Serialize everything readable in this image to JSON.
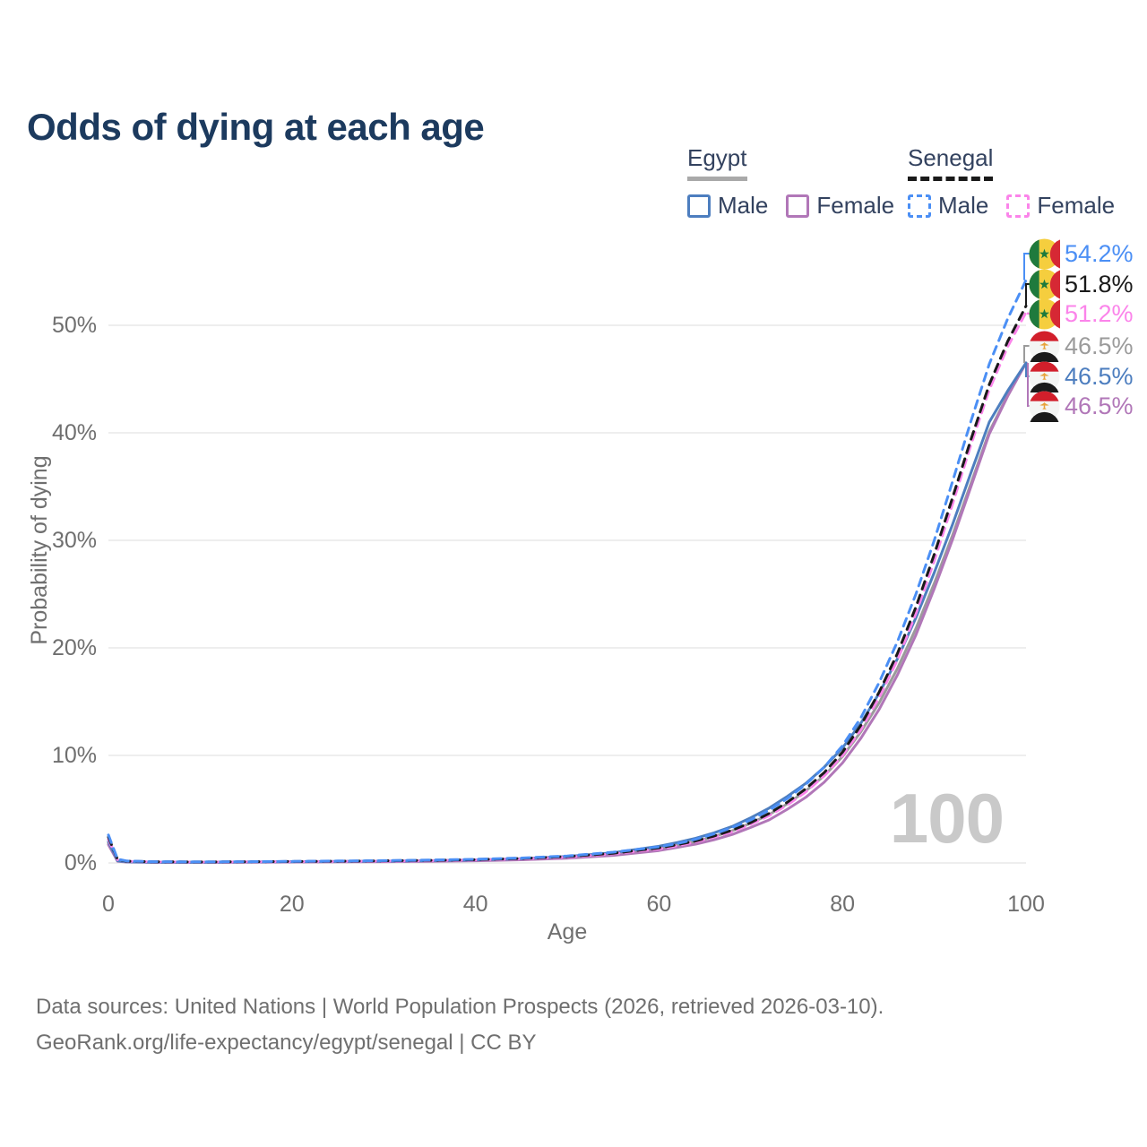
{
  "title": "Odds of dying at each age",
  "watermark": "100",
  "legend": {
    "groups": [
      {
        "name": "Egypt",
        "line_style": "solid",
        "underline_color": "#a9a9a9",
        "items": [
          {
            "label": "Male",
            "color": "#4d7ebf",
            "dashed": false
          },
          {
            "label": "Female",
            "color": "#b177b8",
            "dashed": false
          }
        ]
      },
      {
        "name": "Senegal",
        "line_style": "dashed",
        "underline_color": "#1a1a1a",
        "items": [
          {
            "label": "Male",
            "color": "#4b8ff5",
            "dashed": true
          },
          {
            "label": "Female",
            "color": "#fb84ea",
            "dashed": true
          }
        ]
      }
    ]
  },
  "end_labels": [
    {
      "series": "Senegal Male",
      "flag": "senegal",
      "value": "54.2%",
      "color": "#4b8ff5"
    },
    {
      "series": "Senegal",
      "flag": "senegal",
      "value": "51.8%",
      "color": "#1a1a1a"
    },
    {
      "series": "Senegal Female",
      "flag": "senegal",
      "value": "51.2%",
      "color": "#fb84ea"
    },
    {
      "series": "Egypt",
      "flag": "egypt",
      "value": "46.5%",
      "color": "#9b9b9b"
    },
    {
      "series": "Egypt Male",
      "flag": "egypt",
      "value": "46.5%",
      "color": "#4d7ebf"
    },
    {
      "series": "Egypt Female",
      "flag": "egypt",
      "value": "46.5%",
      "color": "#b177b8"
    }
  ],
  "chart_data": {
    "type": "line",
    "title": "Odds of dying at each age",
    "xlabel": "Age",
    "ylabel": "Probability of dying",
    "xlim": [
      0,
      100
    ],
    "ylim": [
      0,
      56
    ],
    "grid": "horizontal",
    "legend_position": "top-right",
    "x_ticks": [
      0,
      20,
      40,
      60,
      80,
      100
    ],
    "x_tick_labels": [
      "0",
      "20",
      "40",
      "60",
      "80",
      "100"
    ],
    "y_ticks": [
      0,
      10,
      20,
      30,
      40,
      50
    ],
    "y_tick_labels": [
      "0%",
      "10%",
      "20%",
      "30%",
      "40%",
      "50%"
    ],
    "x": [
      0,
      1,
      2,
      5,
      10,
      15,
      20,
      25,
      30,
      35,
      40,
      45,
      50,
      55,
      60,
      62,
      64,
      66,
      68,
      70,
      72,
      74,
      76,
      78,
      80,
      82,
      84,
      86,
      88,
      90,
      92,
      94,
      96,
      98,
      100
    ],
    "series": [
      {
        "name": "Egypt",
        "country": "Egypt",
        "sex": "total",
        "color": "#9b9b9b",
        "dashed": false,
        "end_value_pct": 46.5,
        "values": [
          1.85,
          0.18,
          0.09,
          0.06,
          0.06,
          0.08,
          0.1,
          0.12,
          0.15,
          0.18,
          0.24,
          0.34,
          0.52,
          0.82,
          1.35,
          1.65,
          2.0,
          2.45,
          3.0,
          3.7,
          4.5,
          5.5,
          6.7,
          8.1,
          9.9,
          12.2,
          14.9,
          18.1,
          21.8,
          26.0,
          30.5,
          35.3,
          40.1,
          43.5,
          46.5
        ]
      },
      {
        "name": "Egypt Female",
        "country": "Egypt",
        "sex": "female",
        "color": "#b177b8",
        "dashed": false,
        "end_value_pct": 46.5,
        "values": [
          1.7,
          0.16,
          0.08,
          0.05,
          0.05,
          0.06,
          0.08,
          0.1,
          0.12,
          0.15,
          0.2,
          0.29,
          0.44,
          0.7,
          1.15,
          1.45,
          1.75,
          2.15,
          2.65,
          3.3,
          4.0,
          5.0,
          6.1,
          7.5,
          9.3,
          11.6,
          14.3,
          17.5,
          21.2,
          25.5,
          30.1,
          35.0,
          39.9,
          43.4,
          46.5
        ]
      },
      {
        "name": "Egypt Male",
        "country": "Egypt",
        "sex": "male",
        "color": "#4d7ebf",
        "dashed": false,
        "end_value_pct": 46.5,
        "values": [
          2.0,
          0.2,
          0.1,
          0.07,
          0.07,
          0.09,
          0.12,
          0.14,
          0.17,
          0.21,
          0.28,
          0.4,
          0.6,
          0.95,
          1.55,
          1.9,
          2.3,
          2.8,
          3.4,
          4.2,
          5.1,
          6.2,
          7.4,
          8.9,
          10.7,
          13.0,
          15.8,
          19.0,
          22.8,
          27.0,
          31.5,
          36.3,
          41.0,
          43.9,
          46.5
        ]
      },
      {
        "name": "Senegal Female",
        "country": "Senegal",
        "sex": "female",
        "color": "#fb84ea",
        "dashed": true,
        "end_value_pct": 51.2,
        "values": [
          2.2,
          0.3,
          0.15,
          0.1,
          0.08,
          0.1,
          0.12,
          0.14,
          0.17,
          0.21,
          0.28,
          0.38,
          0.55,
          0.85,
          1.3,
          1.6,
          1.95,
          2.4,
          2.9,
          3.6,
          4.4,
          5.4,
          6.6,
          8.1,
          10.0,
          12.4,
          15.4,
          18.9,
          23.2,
          28.1,
          33.4,
          38.9,
          44.0,
          48.0,
          51.2
        ]
      },
      {
        "name": "Senegal",
        "country": "Senegal",
        "sex": "total",
        "color": "#1a1a1a",
        "dashed": true,
        "end_value_pct": 51.8,
        "values": [
          2.4,
          0.32,
          0.16,
          0.11,
          0.09,
          0.11,
          0.13,
          0.16,
          0.2,
          0.24,
          0.31,
          0.42,
          0.6,
          0.9,
          1.4,
          1.7,
          2.05,
          2.5,
          3.05,
          3.75,
          4.6,
          5.65,
          6.9,
          8.4,
          10.3,
          12.8,
          15.9,
          19.5,
          23.8,
          28.7,
          34.0,
          39.4,
          44.5,
          48.5,
          51.8
        ]
      },
      {
        "name": "Senegal Male",
        "country": "Senegal",
        "sex": "male",
        "color": "#4b8ff5",
        "dashed": true,
        "end_value_pct": 54.2,
        "values": [
          2.6,
          0.35,
          0.18,
          0.12,
          0.1,
          0.12,
          0.15,
          0.18,
          0.22,
          0.27,
          0.34,
          0.46,
          0.65,
          1.0,
          1.5,
          1.8,
          2.2,
          2.7,
          3.3,
          4.0,
          4.9,
          6.0,
          7.3,
          8.9,
          10.9,
          13.5,
          16.8,
          20.6,
          25.0,
          30.0,
          35.5,
          41.1,
          46.4,
          50.6,
          54.2
        ]
      }
    ]
  },
  "footer": {
    "line1": "Data sources: United Nations | World Population Prospects (2026, retrieved 2026-03-10).",
    "line2": "GeoRank.org/life-expectancy/egypt/senegal | CC BY"
  }
}
